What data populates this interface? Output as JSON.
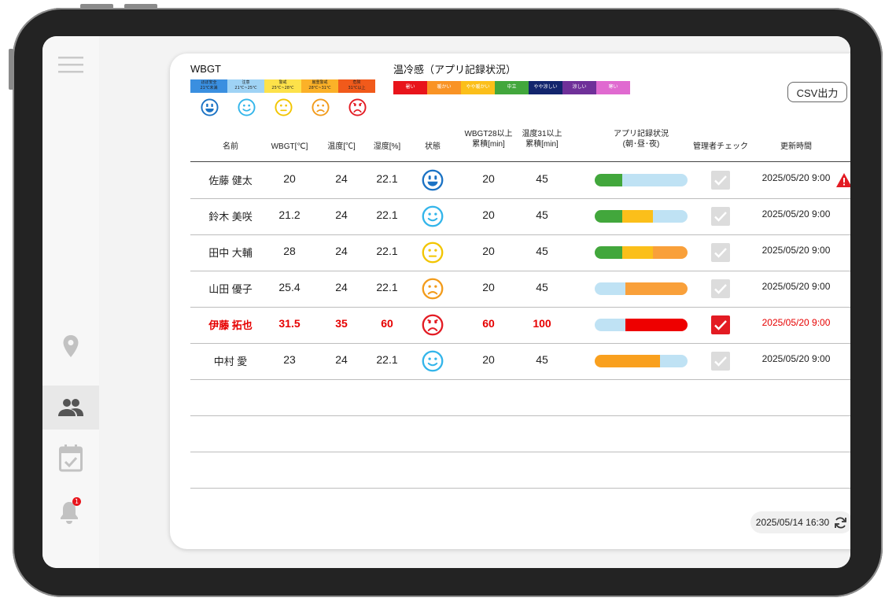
{
  "wbgt": {
    "title": "WBGT",
    "levels": [
      {
        "label": "ほぼ安全\n21℃未満",
        "color": "#3a8fe0",
        "face": "#1a72c4"
      },
      {
        "label": "注意\n21℃~25℃",
        "color": "#9fd3f5",
        "face": "#33b5ea"
      },
      {
        "label": "警戒\n25℃~28℃",
        "color": "#fde24a",
        "face": "#f2c500"
      },
      {
        "label": "厳重警戒\n28℃~31℃",
        "color": "#fbb128",
        "face": "#f29b1b"
      },
      {
        "label": "危険\n31℃以上",
        "color": "#f15a1b",
        "face": "#e31b23"
      }
    ]
  },
  "thermal": {
    "title": "温冷感（アプリ記録状況）",
    "levels": [
      {
        "label": "暑い",
        "color": "#e8141b"
      },
      {
        "label": "暖かい",
        "color": "#f99325"
      },
      {
        "label": "やや暖かい",
        "color": "#fbbf1a"
      },
      {
        "label": "中立",
        "color": "#42a73c"
      },
      {
        "label": "やや涼しい",
        "color": "#12256d"
      },
      {
        "label": "涼しい",
        "color": "#6f3099"
      },
      {
        "label": "寒い",
        "color": "#e06ad0"
      }
    ]
  },
  "csv_button": "CSV出力",
  "table": {
    "headers": [
      "名前",
      "WBGT[℃]",
      "温度[℃]",
      "湿度[%]",
      "状態",
      "WBGT28以上\n累積[min]",
      "温度31以上\n累積[min]",
      "アプリ記録状況\n(朝･昼･夜)",
      "管理者チェック",
      "更新時間"
    ],
    "rows": [
      {
        "name": "佐藤 健太",
        "wbgt": "20",
        "temp": "24",
        "humidity": "22.1",
        "state": 0,
        "wbgt28": "20",
        "temp31": "45",
        "bar": [
          {
            "c": "#42a73c",
            "w": 0.3
          },
          {
            "c": "#bfe2f4",
            "w": 0.7
          }
        ],
        "checked": false,
        "updated": "2025/05/20 9:00",
        "warning": true,
        "alert": false
      },
      {
        "name": "鈴木 美咲",
        "wbgt": "21.2",
        "temp": "24",
        "humidity": "22.1",
        "state": 1,
        "wbgt28": "20",
        "temp31": "45",
        "bar": [
          {
            "c": "#42a73c",
            "w": 0.3
          },
          {
            "c": "#fbbf1a",
            "w": 0.33
          },
          {
            "c": "#bfe2f4",
            "w": 0.37
          }
        ],
        "checked": false,
        "updated": "2025/05/20 9:00",
        "warning": false,
        "alert": false
      },
      {
        "name": "田中 大輔",
        "wbgt": "28",
        "temp": "24",
        "humidity": "22.1",
        "state": 2,
        "wbgt28": "20",
        "temp31": "45",
        "bar": [
          {
            "c": "#42a73c",
            "w": 0.3
          },
          {
            "c": "#fbbf1a",
            "w": 0.33
          },
          {
            "c": "#f9a03a",
            "w": 0.37
          }
        ],
        "checked": false,
        "updated": "2025/05/20 9:00",
        "warning": false,
        "alert": false
      },
      {
        "name": "山田 優子",
        "wbgt": "25.4",
        "temp": "24",
        "humidity": "22.1",
        "state": 3,
        "wbgt28": "20",
        "temp31": "45",
        "bar": [
          {
            "c": "#bfe2f4",
            "w": 0.33
          },
          {
            "c": "#f9a03a",
            "w": 0.67
          }
        ],
        "checked": false,
        "updated": "2025/05/20 9:00",
        "warning": false,
        "alert": false
      },
      {
        "name": "伊藤 拓也",
        "wbgt": "31.5",
        "temp": "35",
        "humidity": "60",
        "state": 4,
        "wbgt28": "60",
        "temp31": "100",
        "bar": [
          {
            "c": "#bfe2f4",
            "w": 0.33
          },
          {
            "c": "#ee0000",
            "w": 0.67
          }
        ],
        "checked": true,
        "updated": "2025/05/20 9:00",
        "warning": false,
        "alert": true
      },
      {
        "name": "中村 愛",
        "wbgt": "23",
        "temp": "24",
        "humidity": "22.1",
        "state": 1,
        "wbgt28": "20",
        "temp31": "45",
        "bar": [
          {
            "c": "#f9a01e",
            "w": 0.7
          },
          {
            "c": "#bfe2f4",
            "w": 0.3
          }
        ],
        "checked": false,
        "updated": "2025/05/20 9:00",
        "warning": false,
        "alert": false
      }
    ]
  },
  "last_updated": "2025/05/14 16:30",
  "notification_badge": "1",
  "icons": {
    "menu": "hamburger-icon",
    "location": "map-pin-icon",
    "people": "people-icon",
    "calendar": "calendar-check-icon",
    "bell": "bell-icon",
    "refresh": "refresh-icon",
    "warning": "warning-triangle-icon"
  }
}
